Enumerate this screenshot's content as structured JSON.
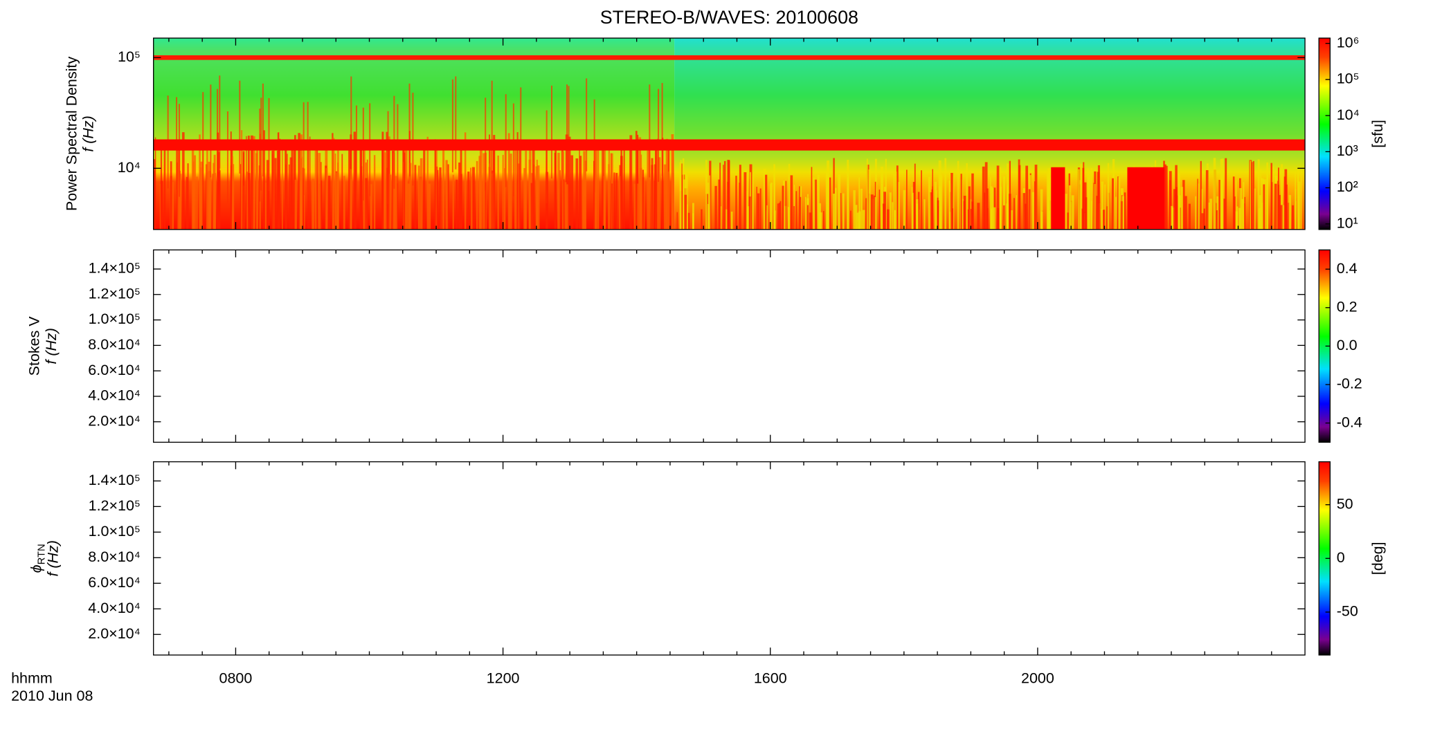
{
  "title": "STEREO-B/WAVES: 20100608",
  "xlabel": "hhmm",
  "date_label": "2010 Jun 08",
  "xlim": [
    6.77,
    24
  ],
  "xticks": [
    {
      "value": 8,
      "label": "0800"
    },
    {
      "value": 12,
      "label": "1200"
    },
    {
      "value": 16,
      "label": "1600"
    },
    {
      "value": 20,
      "label": "2000"
    }
  ],
  "xminorticks": [
    7,
    7.5,
    8.5,
    9,
    9.5,
    10,
    10.5,
    11,
    11.5,
    12.5,
    13,
    13.5,
    14,
    14.5,
    15,
    15.5,
    16.5,
    17,
    17.5,
    18,
    18.5,
    19,
    19.5,
    20.5,
    21,
    21.5,
    22,
    22.5,
    23,
    23.5
  ],
  "chart_data": [
    {
      "type": "heatmap",
      "ylabel": [
        "Power Spectral Density",
        "f (Hz)"
      ],
      "yscale": "log",
      "ylim": [
        2800,
        150000
      ],
      "yticks": [
        {
          "value": 10000,
          "label": "10⁴"
        },
        {
          "value": 100000,
          "label": "10⁵"
        }
      ],
      "colorbar": {
        "scale": "log",
        "lim": [
          7,
          1400000
        ],
        "ticks": [
          {
            "value": 10,
            "label": "10¹"
          },
          {
            "value": 100,
            "label": "10²"
          },
          {
            "value": 1000,
            "label": "10³"
          },
          {
            "value": 10000,
            "label": "10⁴"
          },
          {
            "value": 100000,
            "label": "10⁵"
          },
          {
            "value": 1000000,
            "label": "10⁶"
          }
        ],
        "label": "[sfu]"
      }
    },
    {
      "type": "heatmap",
      "ylabel": [
        "Stokes V",
        "f (Hz)"
      ],
      "yscale": "linear",
      "ylim": [
        3900,
        155000
      ],
      "yticks": [
        {
          "value": 20000,
          "label": "2.0×10⁴"
        },
        {
          "value": 40000,
          "label": "4.0×10⁴"
        },
        {
          "value": 60000,
          "label": "6.0×10⁴"
        },
        {
          "value": 80000,
          "label": "8.0×10⁴"
        },
        {
          "value": 100000,
          "label": "1.0×10⁵"
        },
        {
          "value": 120000,
          "label": "1.2×10⁵"
        },
        {
          "value": 140000,
          "label": "1.4×10⁵"
        }
      ],
      "colorbar": {
        "scale": "linear",
        "lim": [
          -0.5,
          0.5
        ],
        "ticks": [
          -0.4,
          -0.2,
          {
            "value": 0,
            "label": "0.0"
          },
          0.2,
          0.4
        ]
      }
    },
    {
      "type": "heatmap",
      "ylabel": [
        "ϕ",
        "RTN",
        "f (Hz)"
      ],
      "yscale": "linear",
      "ylim": [
        3900,
        155000
      ],
      "yticks": [
        {
          "value": 20000,
          "label": "2.0×10⁴"
        },
        {
          "value": 40000,
          "label": "4.0×10⁴"
        },
        {
          "value": 60000,
          "label": "6.0×10⁴"
        },
        {
          "value": 80000,
          "label": "8.0×10⁴"
        },
        {
          "value": 100000,
          "label": "1.0×10⁵"
        },
        {
          "value": 120000,
          "label": "1.2×10⁵"
        },
        {
          "value": 140000,
          "label": "1.4×10⁵"
        }
      ],
      "colorbar": {
        "scale": "linear",
        "lim": [
          -90,
          90
        ],
        "ticks": [
          -50,
          0,
          50
        ],
        "label": "[deg]"
      }
    }
  ]
}
